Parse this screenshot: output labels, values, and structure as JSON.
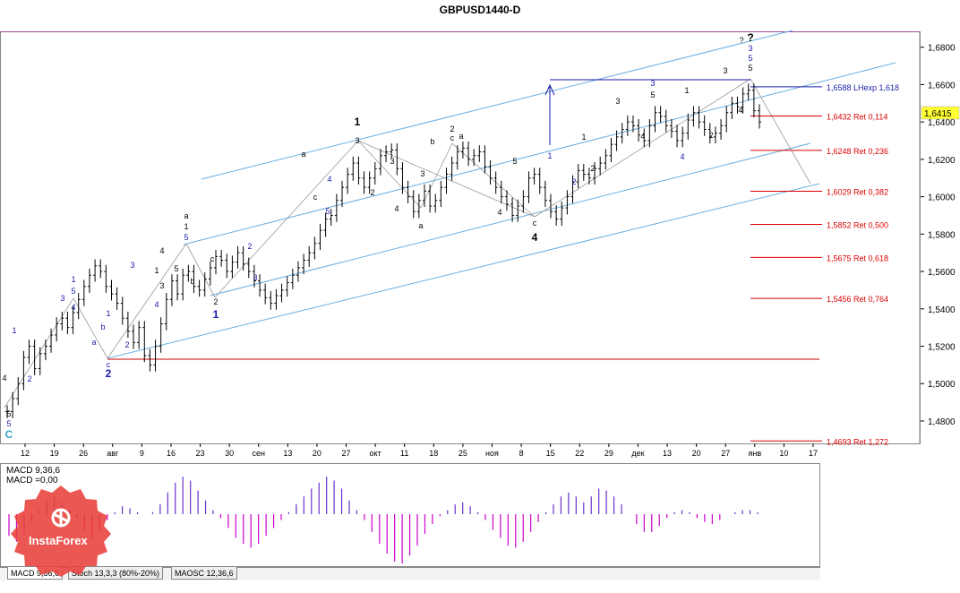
{
  "window": {
    "title": "GBPUSD1440-D"
  },
  "chart_data": {
    "type": "line",
    "instrument": "GBPUSD",
    "timeframe": "1440-D",
    "price_axis": {
      "ylim": [
        1.468,
        1.688
      ],
      "ticks": [
        "1,6800",
        "1,6600",
        "1,6400",
        "1,6200",
        "1,6000",
        "1,5800",
        "1,5600",
        "1,5400",
        "1,5200",
        "1,5000",
        "1,4800"
      ],
      "current_price": "1,6415"
    },
    "date_axis": {
      "labels": [
        "12",
        "19",
        "26",
        "авг",
        "9",
        "16",
        "23",
        "30",
        "сен",
        "13",
        "20",
        "27",
        "окт",
        "11",
        "18",
        "25",
        "ноя",
        "8",
        "15",
        "22",
        "29",
        "дек",
        "13",
        "20",
        "27",
        "янв",
        "10",
        "17"
      ]
    },
    "series": [
      {
        "values": [
          1.485,
          1.492,
          1.5,
          1.514,
          1.52,
          1.508,
          1.516,
          1.52,
          1.526,
          1.532,
          1.535,
          1.53,
          1.538,
          1.545,
          1.552,
          1.558,
          1.563,
          1.56,
          1.552,
          1.548,
          1.543,
          1.535,
          1.528,
          1.522,
          1.53,
          1.515,
          1.51,
          1.52,
          1.532,
          1.545,
          1.555,
          1.548,
          1.558,
          1.56,
          1.552,
          1.55,
          1.556,
          1.562,
          1.568,
          1.566,
          1.56,
          1.565,
          1.57,
          1.564,
          1.56,
          1.555,
          1.55,
          1.546,
          1.543,
          1.547,
          1.55,
          1.554,
          1.558,
          1.562,
          1.566,
          1.57,
          1.575,
          1.582,
          1.588,
          1.59,
          1.598,
          1.605,
          1.612,
          1.618,
          1.61,
          1.605,
          1.61,
          1.615,
          1.622,
          1.624,
          1.625,
          1.615,
          1.605,
          1.6,
          1.592,
          1.598,
          1.603,
          1.595,
          1.598,
          1.605,
          1.612,
          1.618,
          1.624,
          1.626,
          1.62,
          1.622,
          1.624,
          1.616,
          1.61,
          1.605,
          1.6,
          1.596,
          1.59,
          1.595,
          1.6,
          1.61,
          1.612,
          1.605,
          1.598,
          1.592,
          1.588,
          1.594,
          1.6,
          1.608,
          1.614,
          1.612,
          1.61,
          1.615,
          1.618,
          1.622,
          1.628,
          1.632,
          1.636,
          1.64,
          1.638,
          1.633,
          1.63,
          1.638,
          1.645,
          1.643,
          1.638,
          1.635,
          1.63,
          1.634,
          1.641,
          1.645,
          1.64,
          1.636,
          1.632,
          1.634,
          1.638,
          1.645,
          1.65,
          1.648,
          1.655,
          1.657,
          1.646,
          1.64
        ]
      }
    ],
    "price_levels": [
      {
        "value": 1.6588,
        "label": "1,6588 LHexp 1,618",
        "color": "#1a1aaa"
      },
      {
        "value": 1.6432,
        "label": "1,6432 Ret 0,114",
        "color": "#dd0000"
      },
      {
        "value": 1.6248,
        "label": "1,6248 Ret 0,236",
        "color": "#dd0000"
      },
      {
        "value": 1.6029,
        "label": "1,6029 Ret 0,382",
        "color": "#dd0000"
      },
      {
        "value": 1.5852,
        "label": "1,5852 Ret 0,500",
        "color": "#dd0000"
      },
      {
        "value": 1.5675,
        "label": "1,5675 Ret 0,618",
        "color": "#dd0000"
      },
      {
        "value": 1.5456,
        "label": "1,5456 Ret 0,764",
        "color": "#dd0000"
      },
      {
        "value": 1.4693,
        "label": "1,4693 Ret 1,272",
        "color": "#dd0000"
      }
    ],
    "wave_labels": [
      {
        "text": "C",
        "color": "#3aa0c8"
      },
      {
        "text": "5",
        "color": "#1a1aaa"
      },
      {
        "text": "5",
        "color": "#000000"
      },
      {
        "text": "4",
        "color": "#000000"
      },
      {
        "text": "1",
        "color": "#1a1aaa"
      },
      {
        "text": "2",
        "color": "#1a1aaa"
      },
      {
        "text": "3",
        "color": "#1a1aaa"
      },
      {
        "text": "4",
        "color": "#1a1aaa"
      },
      {
        "text": "5",
        "color": "#1a1aaa"
      },
      {
        "text": "1",
        "color": "#1a1aaa"
      },
      {
        "text": "a",
        "color": "#1a1aaa"
      },
      {
        "text": "b",
        "color": "#1a1aaa"
      },
      {
        "text": "c",
        "color": "#1a1aaa"
      },
      {
        "text": "2",
        "color": "#1a1aaa"
      },
      {
        "text": "1",
        "color": "#1a1aaa"
      },
      {
        "text": "2",
        "color": "#1a1aaa"
      },
      {
        "text": "3",
        "color": "#1a1aaa"
      },
      {
        "text": "4",
        "color": "#1a1aaa"
      },
      {
        "text": "1",
        "color": "#000000"
      },
      {
        "text": "3",
        "color": "#000000"
      },
      {
        "text": "4",
        "color": "#000000"
      },
      {
        "text": "5",
        "color": "#000000"
      },
      {
        "text": "5",
        "color": "#1a1aaa"
      },
      {
        "text": "1",
        "color": "#000000"
      },
      {
        "text": "a",
        "color": "#000000"
      },
      {
        "text": "b",
        "color": "#000000"
      },
      {
        "text": "c",
        "color": "#000000"
      },
      {
        "text": "2",
        "color": "#000000"
      },
      {
        "text": "1",
        "color": "#1a1aaa"
      },
      {
        "text": "2",
        "color": "#1a1aaa"
      },
      {
        "text": "3",
        "color": "#1a1aaa"
      },
      {
        "text": "a",
        "color": "#000000"
      },
      {
        "text": "c",
        "color": "#000000"
      },
      {
        "text": "4",
        "color": "#1a1aaa"
      },
      {
        "text": "5",
        "color": "#1a1aaa"
      },
      {
        "text": "3",
        "color": "#000000"
      },
      {
        "text": "1",
        "color": "#000000"
      },
      {
        "text": "2",
        "color": "#000000"
      },
      {
        "text": "3",
        "color": "#000000"
      },
      {
        "text": "4",
        "color": "#000000"
      },
      {
        "text": "a",
        "color": "#000000"
      },
      {
        "text": "b",
        "color": "#000000"
      },
      {
        "text": "c",
        "color": "#000000"
      },
      {
        "text": "2",
        "color": "#000000"
      },
      {
        "text": "a",
        "color": "#000000"
      },
      {
        "text": "3",
        "color": "#000000"
      },
      {
        "text": "4",
        "color": "#000000"
      },
      {
        "text": "5",
        "color": "#000000"
      },
      {
        "text": "c",
        "color": "#000000"
      },
      {
        "text": "4",
        "color": "#000000"
      },
      {
        "text": "1",
        "color": "#1a1aaa"
      },
      {
        "text": "2",
        "color": "#1a1aaa"
      },
      {
        "text": "1",
        "color": "#000000"
      },
      {
        "text": "2",
        "color": "#000000"
      },
      {
        "text": "3",
        "color": "#000000"
      },
      {
        "text": "4",
        "color": "#000000"
      },
      {
        "text": "3",
        "color": "#1a1aaa"
      },
      {
        "text": "5",
        "color": "#000000"
      },
      {
        "text": "1",
        "color": "#000000"
      },
      {
        "text": "2",
        "color": "#000000"
      },
      {
        "text": "4",
        "color": "#1a1aaa"
      },
      {
        "text": "3",
        "color": "#000000"
      },
      {
        "text": "4",
        "color": "#000000"
      },
      {
        "text": "5",
        "color": "#000000"
      },
      {
        "text": "5",
        "color": "#1a1aaa"
      },
      {
        "text": "3",
        "color": "#1a1aaa"
      },
      {
        "text": "?",
        "color": "#000000"
      },
      {
        "text": "?",
        "color": "#000000"
      }
    ],
    "macd": {
      "label_line1": "MACD 9,36,6",
      "label_line2": "MACD =0,00",
      "positive_color": "#6633cc",
      "negative_color": "#cc00cc",
      "values": [
        -0.55,
        -0.7,
        -0.5,
        -0.2,
        0.1,
        0.35,
        0.45,
        0.3,
        0.1,
        -0.1,
        -0.4,
        -0.6,
        -0.45,
        -0.15,
        0.05,
        0.2,
        0.15,
        0.05,
        0.0,
        0.05,
        0.25,
        0.55,
        0.8,
        0.95,
        0.85,
        0.6,
        0.35,
        0.1,
        -0.1,
        -0.35,
        -0.6,
        -0.75,
        -0.85,
        -0.75,
        -0.55,
        -0.35,
        -0.15,
        0.05,
        0.25,
        0.45,
        0.65,
        0.8,
        0.95,
        0.85,
        0.65,
        0.35,
        0.1,
        -0.15,
        -0.45,
        -0.75,
        -1.0,
        -1.2,
        -1.25,
        -1.05,
        -0.8,
        -0.5,
        -0.25,
        -0.05,
        0.1,
        0.25,
        0.3,
        0.2,
        0.05,
        -0.15,
        -0.4,
        -0.6,
        -0.8,
        -0.85,
        -0.7,
        -0.45,
        -0.2,
        0.05,
        0.25,
        0.45,
        0.55,
        0.45,
        0.3,
        0.45,
        0.65,
        0.6,
        0.45,
        0.25,
        0.0,
        -0.25,
        -0.45,
        -0.45,
        -0.3,
        -0.1,
        0.05,
        0.1,
        0.05,
        -0.1,
        -0.2,
        -0.25,
        -0.15,
        0.0,
        0.05,
        0.1,
        0.1,
        0.05
      ]
    },
    "indicator_tabs": [
      "MACD 9,36,6",
      "Stoch 13,3,3 (80%-20%)",
      "MAOSC 12,36,6"
    ]
  },
  "branding": {
    "logo_text": "InstaForex"
  },
  "colors": {
    "candle": "#000000",
    "channel": "#6aaee0",
    "base_support": "#cc0000",
    "grey_path": "#999999"
  }
}
